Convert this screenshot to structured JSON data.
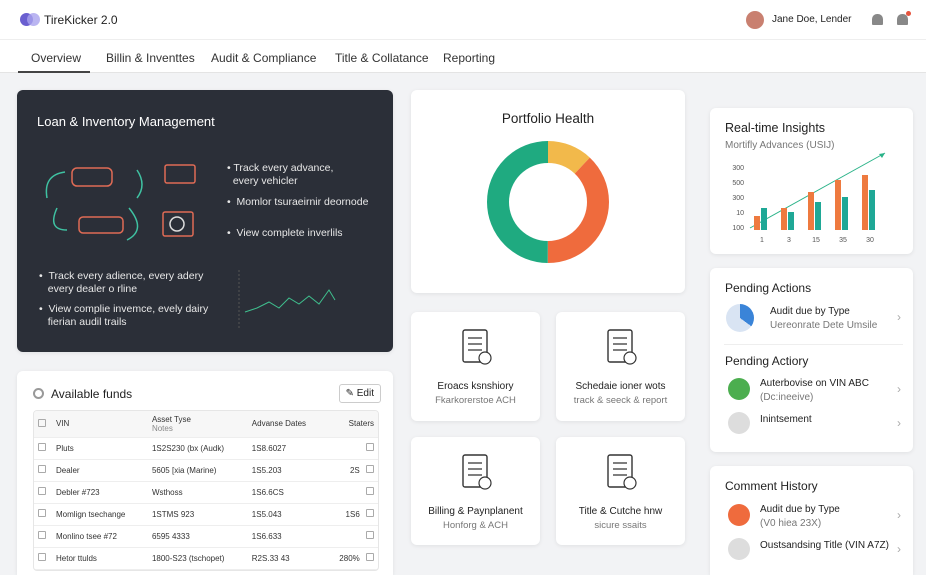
{
  "header": {
    "brand": "TireKicker 2.0",
    "user": "Jane Doe, Lender"
  },
  "tabs": [
    "Overview",
    "Billin & Inventtes",
    "Audit & Compliance",
    "Title & Collatance",
    "Reporting"
  ],
  "hero": {
    "title": "Loan & Inventory Management",
    "bullets": [
      "Track every advance,",
      "every vehicler",
      "Momlor tsuraeirnir deornode",
      "View complete inverlils"
    ],
    "bullets2": [
      "Track every adience, every adery",
      "every dealer o rline",
      "View complie invemce, evely dairy",
      "fierian audil trails"
    ]
  },
  "portfolio": {
    "title": "Portfolio Health",
    "segments": [
      {
        "color": "#f2b94b",
        "value": 12
      },
      {
        "color": "#ef6b3d",
        "value": 38
      },
      {
        "color": "#1faa80",
        "value": 50
      }
    ]
  },
  "insights": {
    "title": "Real-time Insights",
    "subtitle": "Mortifly Advances (USIJ)",
    "ylabels": [
      "300",
      "500",
      "300",
      "10",
      "100"
    ],
    "xlabels": [
      "1",
      "3",
      "15",
      "35",
      "30"
    ],
    "series": [
      {
        "color": "#ee7a3f",
        "values": [
          14,
          22,
          38,
          50,
          55
        ]
      },
      {
        "color": "#1fa896",
        "values": [
          22,
          18,
          28,
          33,
          40
        ]
      }
    ]
  },
  "pending": {
    "title": "Pending Actions",
    "items": [
      {
        "title": "Audit due by Type",
        "sub": "Uereonrate Dete Umsile"
      }
    ],
    "title2": "Pending Actiory",
    "items2": [
      {
        "title": "Auterbovise on VIN ABC",
        "sub": "(Dc:ineeive)"
      },
      {
        "title": "Inintsement"
      }
    ]
  },
  "comments": {
    "title": "Comment History",
    "items": [
      {
        "title": "Audit due by Type",
        "sub": "(V0 hiea 23X)"
      },
      {
        "title": "Oustsandsing Title (VIN A7Z)"
      }
    ]
  },
  "tiles": [
    {
      "title": "Eroacs ksnshiory",
      "sub": "Fkarkorerstoe ACH"
    },
    {
      "title": "Schedaie ioner wots",
      "sub": "track & seeck & report"
    },
    {
      "title": "Billing & Paynplanent",
      "sub": "Honforg & ACH"
    },
    {
      "title": "Title & Cutche hnw",
      "sub": "sicure ssaits"
    }
  ],
  "funds": {
    "title": "Available funds",
    "edit": "Edit",
    "headers": [
      "VIN",
      "Asset Tyse",
      "Notes",
      "Advanse Dates",
      "Staters"
    ],
    "rows": [
      [
        "Pluts",
        "1S2S230 (bx (Audk)",
        "1S8.6027",
        ""
      ],
      [
        "Dealer",
        "5605 [xia (Marine)",
        "1S5.203",
        "2S"
      ],
      [
        "Debler #723",
        "Wsthoss",
        "1S6.6CS",
        ""
      ],
      [
        "Momlign tsechange",
        "1STMS 923",
        "1S5.043",
        "1S6"
      ],
      [
        "Monlino tsee #72",
        "6595 4333",
        "1S6.633",
        ""
      ],
      [
        "Hetor ttulds",
        "1800-S23 (tschopet)",
        "R2S.33 43",
        "280%"
      ]
    ]
  }
}
